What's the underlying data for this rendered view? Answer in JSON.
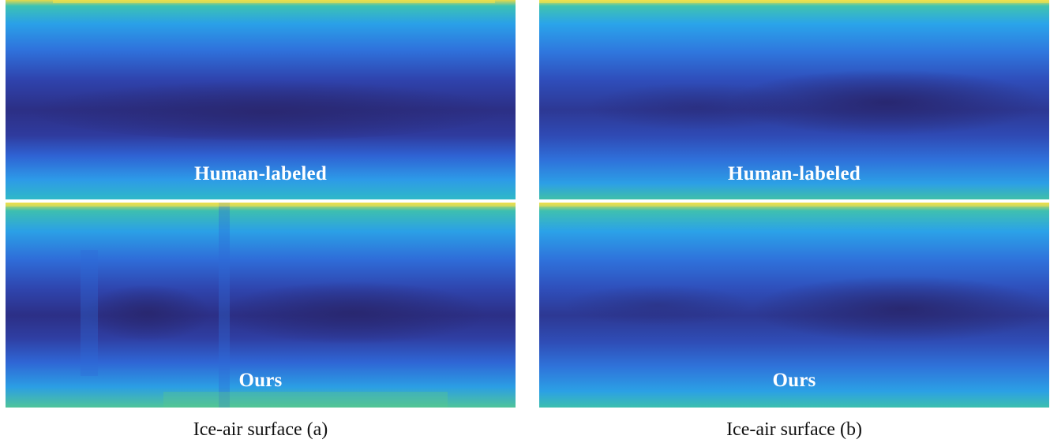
{
  "panels": {
    "a": {
      "top_label": "Human-labeled",
      "bottom_label": "Ours",
      "caption": "Ice-air surface (a)"
    },
    "b": {
      "top_label": "Human-labeled",
      "bottom_label": "Ours",
      "caption": "Ice-air surface (b)"
    }
  },
  "colors": {
    "deep": "#2b2a7d",
    "mid_blue": "#2f5fd6",
    "bright_blue": "#2f8ff0",
    "teal": "#20b9b0",
    "yellow": "#f4e24a",
    "white_label": "#ffffff"
  }
}
